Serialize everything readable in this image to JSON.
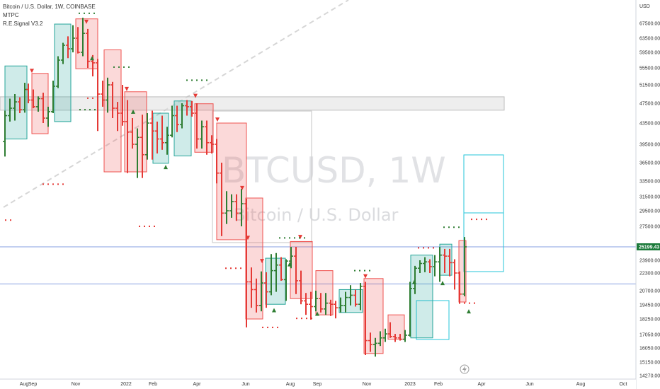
{
  "legend": {
    "title": "Bitcoin / U.S. Dollar, 1W, COINBASE",
    "indicator_1": "MTPC",
    "indicator_2": "R.E.Signal V3.2"
  },
  "watermark": {
    "symbol": "BTCUSD, 1W",
    "description": "Bitcoin / U.S. Dollar"
  },
  "colors": {
    "up": "#2e7d32",
    "down": "#e53935",
    "box_up": "#26a69a",
    "box_down": "#ef5350",
    "cyan": "#26c6da",
    "price_tag": "#1b7a3a",
    "hline": "#5b7fd6"
  },
  "chart_data": {
    "type": "candlestick",
    "symbol": "BTCUSD",
    "timeframe": "1W",
    "exchange": "COINBASE",
    "y_axis_label": "USD",
    "price_ticks": [
      "67500.00",
      "63500.00",
      "59500.00",
      "55500.00",
      "51500.00",
      "47500.00",
      "43500.00",
      "39500.00",
      "36500.00",
      "33500.00",
      "31500.00",
      "29500.00",
      "27500.00",
      "25199.43",
      "23900.00",
      "22300.00",
      "20700.00",
      "19450.00",
      "18250.00",
      "17050.00",
      "16050.00",
      "15150.00",
      "14270.00"
    ],
    "time_ticks": [
      "Aug",
      "Sep",
      "Nov",
      "2022",
      "Feb",
      "Apr",
      "Jun",
      "Aug",
      "Sep",
      "Nov",
      "2023",
      "Feb",
      "Apr",
      "Jun",
      "Aug",
      "Oct"
    ],
    "current_price": "25199.43",
    "horizontal_lines": [
      25199.43,
      21300
    ]
  }
}
